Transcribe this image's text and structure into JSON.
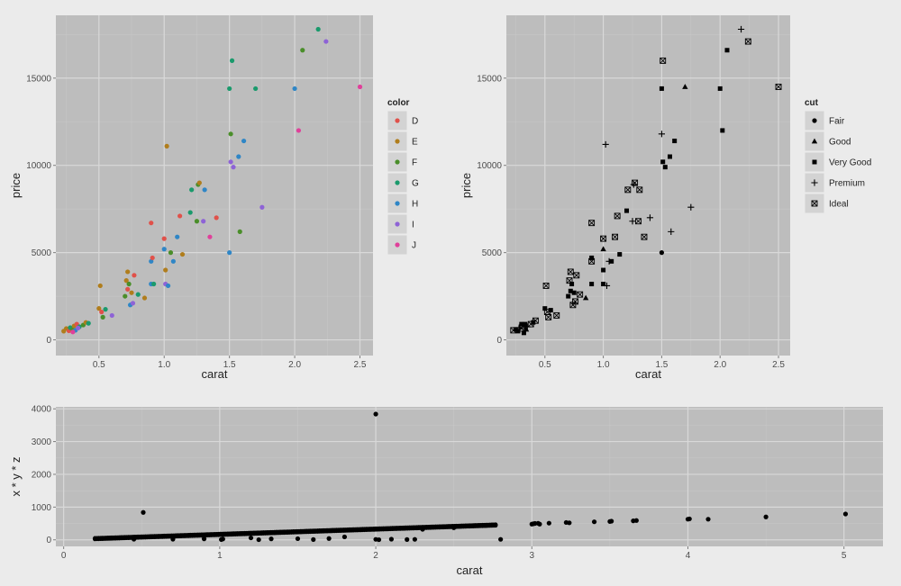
{
  "chart_data": [
    {
      "type": "scatter",
      "title": "",
      "xlabel": "carat",
      "ylabel": "price",
      "xlim": [
        0.17,
        2.6
      ],
      "ylim": [
        -900,
        18600
      ],
      "x_ticks": [
        0.5,
        1.0,
        1.5,
        2.0,
        2.5
      ],
      "x_tick_labels": [
        "0.5",
        "1.0",
        "1.5",
        "2.0",
        "2.5"
      ],
      "y_ticks": [
        0,
        5000,
        10000,
        15000
      ],
      "y_tick_labels": [
        "0",
        "5000",
        "10000",
        "15000"
      ],
      "grid": true,
      "legend": {
        "title": "color",
        "placement": "right",
        "entries": [
          {
            "label": "D",
            "color": "#e0514a"
          },
          {
            "label": "E",
            "color": "#b07d1c"
          },
          {
            "label": "F",
            "color": "#4a8e2a"
          },
          {
            "label": "G",
            "color": "#1a9a6c"
          },
          {
            "label": "H",
            "color": "#2f86c6"
          },
          {
            "label": "I",
            "color": "#8e63d6"
          },
          {
            "label": "J",
            "color": "#e0409a"
          }
        ]
      },
      "points": [
        [
          0.23,
          500,
          "E"
        ],
        [
          0.25,
          650,
          "E"
        ],
        [
          0.27,
          520,
          "D"
        ],
        [
          0.28,
          700,
          "G"
        ],
        [
          0.3,
          600,
          "F"
        ],
        [
          0.31,
          800,
          "E"
        ],
        [
          0.32,
          550,
          "H"
        ],
        [
          0.33,
          900,
          "D"
        ],
        [
          0.35,
          750,
          "G"
        ],
        [
          0.38,
          850,
          "F"
        ],
        [
          0.4,
          1000,
          "E"
        ],
        [
          0.42,
          950,
          "G"
        ],
        [
          0.3,
          450,
          "J"
        ],
        [
          0.34,
          680,
          "I"
        ],
        [
          0.5,
          1800,
          "E"
        ],
        [
          0.51,
          3100,
          "E"
        ],
        [
          0.52,
          1600,
          "D"
        ],
        [
          0.53,
          1300,
          "F"
        ],
        [
          0.55,
          1750,
          "G"
        ],
        [
          0.6,
          1400,
          "I"
        ],
        [
          0.7,
          2500,
          "F"
        ],
        [
          0.71,
          3400,
          "E"
        ],
        [
          0.72,
          3900,
          "E"
        ],
        [
          0.72,
          2900,
          "D"
        ],
        [
          0.73,
          3200,
          "F"
        ],
        [
          0.74,
          2000,
          "H"
        ],
        [
          0.75,
          2700,
          "E"
        ],
        [
          0.76,
          2100,
          "I"
        ],
        [
          0.77,
          3700,
          "D"
        ],
        [
          0.8,
          2600,
          "G"
        ],
        [
          0.85,
          2400,
          "E"
        ],
        [
          0.9,
          3200,
          "H"
        ],
        [
          0.9,
          4500,
          "H"
        ],
        [
          0.9,
          6700,
          "D"
        ],
        [
          0.91,
          4700,
          "D"
        ],
        [
          0.92,
          3200,
          "G"
        ],
        [
          1.0,
          5800,
          "D"
        ],
        [
          1.0,
          5200,
          "H"
        ],
        [
          1.01,
          4000,
          "E"
        ],
        [
          1.01,
          3200,
          "I"
        ],
        [
          1.02,
          11100,
          "E"
        ],
        [
          1.03,
          3100,
          "H"
        ],
        [
          1.05,
          5000,
          "F"
        ],
        [
          1.07,
          4500,
          "H"
        ],
        [
          1.1,
          5900,
          "H"
        ],
        [
          1.12,
          7100,
          "D"
        ],
        [
          1.14,
          4900,
          "E"
        ],
        [
          1.2,
          7300,
          "G"
        ],
        [
          1.21,
          8600,
          "G"
        ],
        [
          1.25,
          6800,
          "F"
        ],
        [
          1.26,
          8900,
          "F"
        ],
        [
          1.27,
          9000,
          "E"
        ],
        [
          1.3,
          6800,
          "I"
        ],
        [
          1.31,
          8600,
          "H"
        ],
        [
          1.35,
          5900,
          "J"
        ],
        [
          1.4,
          7000,
          "D"
        ],
        [
          1.5,
          14400,
          "G"
        ],
        [
          1.51,
          11800,
          "F"
        ],
        [
          1.52,
          16000,
          "G"
        ],
        [
          1.5,
          5000,
          "H"
        ],
        [
          1.51,
          10200,
          "I"
        ],
        [
          1.53,
          9900,
          "I"
        ],
        [
          1.57,
          10500,
          "H"
        ],
        [
          1.58,
          6200,
          "F"
        ],
        [
          1.61,
          11400,
          "H"
        ],
        [
          1.7,
          14400,
          "G"
        ],
        [
          1.75,
          7600,
          "I"
        ],
        [
          2.0,
          14400,
          "H"
        ],
        [
          2.03,
          12000,
          "J"
        ],
        [
          2.06,
          16600,
          "F"
        ],
        [
          2.18,
          17800,
          "G"
        ],
        [
          2.24,
          17100,
          "I"
        ],
        [
          2.5,
          14500,
          "J"
        ]
      ]
    },
    {
      "type": "scatter",
      "title": "",
      "xlabel": "carat",
      "ylabel": "price",
      "xlim": [
        0.17,
        2.6
      ],
      "ylim": [
        -900,
        18600
      ],
      "x_ticks": [
        0.5,
        1.0,
        1.5,
        2.0,
        2.5
      ],
      "x_tick_labels": [
        "0.5",
        "1.0",
        "1.5",
        "2.0",
        "2.5"
      ],
      "y_ticks": [
        0,
        5000,
        10000,
        15000
      ],
      "y_tick_labels": [
        "0",
        "5000",
        "10000",
        "15000"
      ],
      "grid": true,
      "legend": {
        "title": "cut",
        "placement": "right",
        "entries": [
          {
            "label": "Fair",
            "shape": "circle"
          },
          {
            "label": "Good",
            "shape": "triangle"
          },
          {
            "label": "Very Good",
            "shape": "square"
          },
          {
            "label": "Premium",
            "shape": "plus"
          },
          {
            "label": "Ideal",
            "shape": "boxed-x"
          }
        ]
      },
      "points": [
        [
          0.23,
          550,
          "Ideal"
        ],
        [
          0.25,
          600,
          "Very Good"
        ],
        [
          0.27,
          500,
          "Very Good"
        ],
        [
          0.28,
          700,
          "Premium"
        ],
        [
          0.3,
          650,
          "Ideal"
        ],
        [
          0.31,
          800,
          "Ideal"
        ],
        [
          0.32,
          400,
          "Very Good"
        ],
        [
          0.33,
          900,
          "Very Good"
        ],
        [
          0.35,
          750,
          "Premium"
        ],
        [
          0.38,
          900,
          "Ideal"
        ],
        [
          0.4,
          1000,
          "Very Good"
        ],
        [
          0.42,
          1100,
          "Ideal"
        ],
        [
          0.3,
          900,
          "Very Good"
        ],
        [
          0.34,
          600,
          "Good"
        ],
        [
          0.5,
          1800,
          "Very Good"
        ],
        [
          0.51,
          3100,
          "Ideal"
        ],
        [
          0.52,
          1600,
          "Ideal"
        ],
        [
          0.53,
          1300,
          "Ideal"
        ],
        [
          0.55,
          1700,
          "Very Good"
        ],
        [
          0.6,
          1400,
          "Ideal"
        ],
        [
          0.7,
          2500,
          "Very Good"
        ],
        [
          0.71,
          3400,
          "Ideal"
        ],
        [
          0.72,
          3900,
          "Ideal"
        ],
        [
          0.72,
          2800,
          "Very Good"
        ],
        [
          0.73,
          3200,
          "Very Good"
        ],
        [
          0.74,
          2000,
          "Ideal"
        ],
        [
          0.75,
          2700,
          "Very Good"
        ],
        [
          0.76,
          2200,
          "Ideal"
        ],
        [
          0.77,
          3700,
          "Ideal"
        ],
        [
          0.8,
          2600,
          "Ideal"
        ],
        [
          0.85,
          2400,
          "Good"
        ],
        [
          0.9,
          3200,
          "Very Good"
        ],
        [
          0.9,
          4500,
          "Ideal"
        ],
        [
          0.9,
          6700,
          "Ideal"
        ],
        [
          0.9,
          4700,
          "Very Good"
        ],
        [
          1.0,
          5800,
          "Ideal"
        ],
        [
          1.0,
          5200,
          "Good"
        ],
        [
          1.0,
          4000,
          "Very Good"
        ],
        [
          1.0,
          3200,
          "Very Good"
        ],
        [
          1.02,
          11200,
          "Premium"
        ],
        [
          1.03,
          3100,
          "Premium"
        ],
        [
          1.05,
          4500,
          "Premium"
        ],
        [
          1.07,
          4500,
          "Very Good"
        ],
        [
          1.1,
          5900,
          "Ideal"
        ],
        [
          1.12,
          7100,
          "Ideal"
        ],
        [
          1.14,
          4900,
          "Very Good"
        ],
        [
          1.2,
          7400,
          "Very Good"
        ],
        [
          1.21,
          8600,
          "Ideal"
        ],
        [
          1.25,
          6800,
          "Premium"
        ],
        [
          1.26,
          8900,
          "Premium"
        ],
        [
          1.27,
          9000,
          "Ideal"
        ],
        [
          1.3,
          6800,
          "Ideal"
        ],
        [
          1.31,
          8600,
          "Ideal"
        ],
        [
          1.35,
          5900,
          "Ideal"
        ],
        [
          1.4,
          7000,
          "Premium"
        ],
        [
          1.5,
          14400,
          "Very Good"
        ],
        [
          1.5,
          11800,
          "Premium"
        ],
        [
          1.51,
          16000,
          "Ideal"
        ],
        [
          1.5,
          5000,
          "Fair"
        ],
        [
          1.51,
          10200,
          "Very Good"
        ],
        [
          1.53,
          9900,
          "Very Good"
        ],
        [
          1.57,
          10500,
          "Very Good"
        ],
        [
          1.58,
          6200,
          "Premium"
        ],
        [
          1.61,
          11400,
          "Very Good"
        ],
        [
          1.7,
          14500,
          "Good"
        ],
        [
          1.75,
          7600,
          "Premium"
        ],
        [
          2.0,
          14400,
          "Very Good"
        ],
        [
          2.02,
          12000,
          "Very Good"
        ],
        [
          2.06,
          16600,
          "Very Good"
        ],
        [
          2.18,
          17800,
          "Premium"
        ],
        [
          2.24,
          17100,
          "Ideal"
        ],
        [
          2.5,
          14500,
          "Ideal"
        ]
      ]
    },
    {
      "type": "scatter",
      "title": "",
      "xlabel": "carat",
      "ylabel": "x * y * z",
      "xlim": [
        -0.05,
        5.25
      ],
      "ylim": [
        -200,
        4060
      ],
      "x_ticks": [
        0,
        1,
        2,
        3,
        4,
        5
      ],
      "x_tick_labels": [
        "0",
        "1",
        "2",
        "3",
        "4",
        "5"
      ],
      "y_ticks": [
        0,
        1000,
        2000,
        3000,
        4000
      ],
      "y_tick_labels": [
        "0",
        "1000",
        "2000",
        "3000",
        "4000"
      ],
      "grid": true,
      "point_color": "#000000",
      "trend": {
        "slope": 162,
        "intercept": 4,
        "x_from": 0.2,
        "x_to": 2.77,
        "spread": 18
      },
      "points": [
        [
          2.0,
          3840
        ],
        [
          0.51,
          838
        ],
        [
          0.24,
          48
        ],
        [
          0.3,
          60
        ],
        [
          0.7,
          20
        ],
        [
          1.01,
          10
        ],
        [
          1.02,
          25
        ],
        [
          1.25,
          5
        ],
        [
          1.33,
          30
        ],
        [
          1.5,
          35
        ],
        [
          1.6,
          10
        ],
        [
          1.7,
          40
        ],
        [
          2.0,
          15
        ],
        [
          2.02,
          5
        ],
        [
          2.1,
          20
        ],
        [
          2.2,
          10
        ],
        [
          2.25,
          15
        ],
        [
          2.8,
          15
        ],
        [
          1.8,
          90
        ],
        [
          1.2,
          60
        ],
        [
          0.9,
          30
        ],
        [
          0.45,
          20
        ],
        [
          2.3,
          320
        ],
        [
          2.5,
          370
        ],
        [
          2.6,
          420
        ],
        [
          2.7,
          440
        ],
        [
          2.75,
          450
        ],
        [
          3.0,
          480
        ],
        [
          3.01,
          490
        ],
        [
          3.02,
          500
        ],
        [
          3.04,
          505
        ],
        [
          3.05,
          480
        ],
        [
          3.11,
          510
        ],
        [
          3.22,
          530
        ],
        [
          3.24,
          520
        ],
        [
          3.4,
          550
        ],
        [
          3.5,
          560
        ],
        [
          3.51,
          570
        ],
        [
          3.65,
          580
        ],
        [
          3.67,
          590
        ],
        [
          4.0,
          630
        ],
        [
          4.01,
          640
        ],
        [
          4.13,
          630
        ],
        [
          4.5,
          700
        ],
        [
          5.01,
          790
        ]
      ]
    }
  ]
}
